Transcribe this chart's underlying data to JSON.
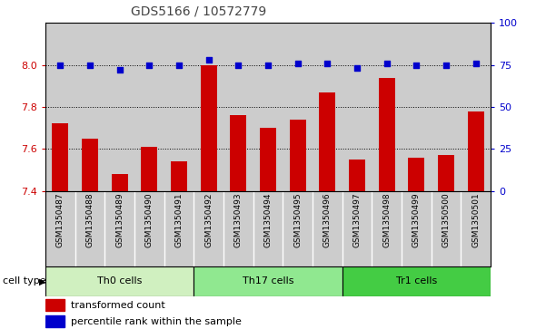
{
  "title": "GDS5166 / 10572779",
  "samples": [
    "GSM1350487",
    "GSM1350488",
    "GSM1350489",
    "GSM1350490",
    "GSM1350491",
    "GSM1350492",
    "GSM1350493",
    "GSM1350494",
    "GSM1350495",
    "GSM1350496",
    "GSM1350497",
    "GSM1350498",
    "GSM1350499",
    "GSM1350500",
    "GSM1350501"
  ],
  "transformed_count": [
    7.72,
    7.65,
    7.48,
    7.61,
    7.54,
    8.0,
    7.76,
    7.7,
    7.74,
    7.87,
    7.55,
    7.94,
    7.56,
    7.57,
    7.78
  ],
  "percentile_rank": [
    75,
    75,
    72,
    75,
    75,
    78,
    75,
    75,
    76,
    76,
    73,
    76,
    75,
    75,
    76
  ],
  "cell_groups": [
    {
      "label": "Th0 cells",
      "start": 0,
      "end": 5,
      "color": "#d0f0c0"
    },
    {
      "label": "Th17 cells",
      "start": 5,
      "end": 10,
      "color": "#90e890"
    },
    {
      "label": "Tr1 cells",
      "start": 10,
      "end": 15,
      "color": "#44cc44"
    }
  ],
  "ylim_left": [
    7.4,
    8.2
  ],
  "ylim_right": [
    0,
    100
  ],
  "bar_color": "#cc0000",
  "dot_color": "#0000cc",
  "bar_width": 0.55,
  "grid_color": "#000000",
  "bg_color": "#cccccc",
  "title_color": "#444444",
  "left_tick_color": "#cc0000",
  "right_tick_color": "#0000cc",
  "legend_items": [
    {
      "label": "transformed count",
      "color": "#cc0000"
    },
    {
      "label": "percentile rank within the sample",
      "color": "#0000cc"
    }
  ]
}
